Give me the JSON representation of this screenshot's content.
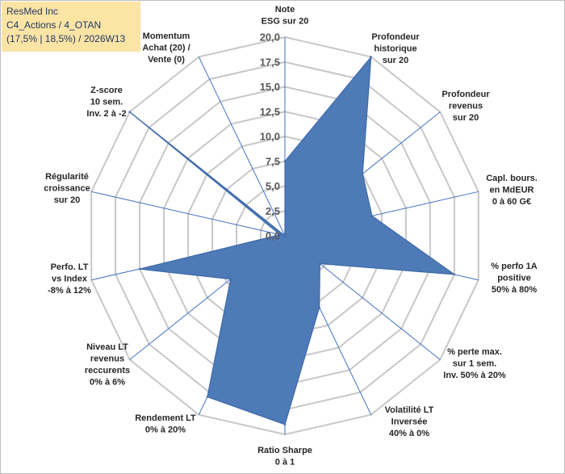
{
  "title": {
    "line1": "ResMed Inc",
    "line2": "C4_Actions / 4_OTAN",
    "line3": "(17,5% | 18,5%) / 2026W13"
  },
  "colors": {
    "fill": "#4e7ab7",
    "stroke": "#3e6aa8",
    "grid": "#c7c7c7",
    "spoke": "#4472c4",
    "title_bg": "#fbe4a4",
    "title_text": "#1f3864"
  },
  "chart_data": {
    "type": "radar",
    "title": "ResMed Inc",
    "rmax": 20,
    "ticks": [
      "0,0",
      "2,5",
      "5,0",
      "7,5",
      "10,0",
      "12,5",
      "15,0",
      "17,5",
      "20,0"
    ],
    "categories": [
      [
        "Note",
        "ESG sur 20"
      ],
      [
        "Profondeur",
        "historique",
        "sur 20"
      ],
      [
        "Profondeur",
        "revenus",
        "sur 20"
      ],
      [
        "Capl. bours.",
        "en MdEUR",
        "0 à 60 G€"
      ],
      [
        "% perfo 1A",
        "positive",
        "50% à 80%"
      ],
      [
        "% perte max.",
        "sur 1 sem.",
        "Inv. 50% à 20%"
      ],
      [
        "Volatilité LT",
        "Inversée",
        "40% à 0%"
      ],
      [
        "Ratio Sharpe",
        "0 à 1"
      ],
      [
        "Rendement LT",
        "0% à 20%"
      ],
      [
        "Niveau LT",
        "revenus",
        "reccurents",
        "0% à 6%"
      ],
      [
        "Perfo. LT",
        "vs Index",
        "-8% à 12%"
      ],
      [
        "Régularité",
        "croissance",
        "sur 20"
      ],
      [
        "Z-score",
        "10 sem.",
        "Inv. 2 à -2"
      ],
      [
        "Momentum",
        "Achat (20) /",
        "Vente (0)"
      ]
    ],
    "series": [
      {
        "values": [
          7.5,
          20.0,
          10.0,
          9.0,
          17.5,
          4.5,
          8.0,
          19.0,
          18.0,
          7.0,
          15.0,
          0.5,
          20.0,
          0.0
        ]
      }
    ]
  }
}
